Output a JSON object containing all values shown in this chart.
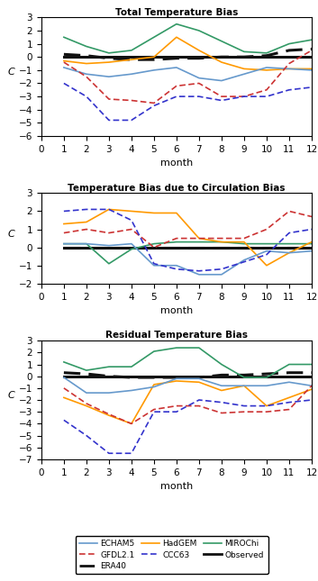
{
  "months": [
    1,
    2,
    3,
    4,
    5,
    6,
    7,
    8,
    9,
    10,
    11,
    12
  ],
  "panel1_title": "Total Temperature Bias",
  "panel2_title": "Temperature Bias due to Circulation Bias",
  "panel3_title": "Residual Temperature Bias",
  "panel1": {
    "ECHAM5": [
      -0.8,
      -1.3,
      -1.5,
      -1.3,
      -1.0,
      -0.8,
      -1.6,
      -1.8,
      -1.3,
      -0.8,
      -0.9,
      -1.0
    ],
    "GFDL2.1": [
      -0.4,
      -1.5,
      -3.2,
      -3.3,
      -3.5,
      -2.2,
      -2.0,
      -3.0,
      -3.0,
      -2.5,
      -0.5,
      0.5
    ],
    "ERA40": [
      0.2,
      0.1,
      -0.1,
      -0.2,
      -0.2,
      -0.1,
      -0.1,
      0.0,
      0.0,
      0.1,
      0.5,
      0.6
    ],
    "HadGEM": [
      -0.3,
      -0.5,
      -0.4,
      -0.2,
      0.0,
      1.5,
      0.5,
      -0.4,
      -0.9,
      -1.0,
      -0.9,
      -0.9
    ],
    "CCC63": [
      -2.0,
      -3.0,
      -4.8,
      -4.8,
      -3.7,
      -3.0,
      -3.0,
      -3.3,
      -3.0,
      -3.0,
      -2.5,
      -2.3
    ],
    "MIROChi": [
      1.5,
      0.8,
      0.3,
      0.5,
      1.5,
      2.5,
      2.0,
      1.2,
      0.4,
      0.3,
      1.0,
      1.3
    ],
    "Observed": [
      0.0,
      0.0,
      0.0,
      0.0,
      0.0,
      0.0,
      0.0,
      0.0,
      0.0,
      0.0,
      0.0,
      0.0
    ]
  },
  "panel2": {
    "ECHAM5": [
      0.2,
      0.2,
      0.1,
      0.2,
      -1.0,
      -1.0,
      -1.5,
      -1.5,
      -0.7,
      -0.2,
      -0.3,
      -0.2
    ],
    "GFDL2.1": [
      0.8,
      1.0,
      0.8,
      1.0,
      0.0,
      0.5,
      0.5,
      0.5,
      0.5,
      1.0,
      2.0,
      1.7
    ],
    "ERA40": [
      0.0,
      0.0,
      0.0,
      0.0,
      0.0,
      0.0,
      0.0,
      0.0,
      0.0,
      0.0,
      0.0,
      0.0
    ],
    "HadGEM": [
      1.3,
      1.4,
      2.1,
      2.0,
      1.9,
      1.9,
      0.5,
      0.3,
      0.3,
      -1.0,
      -0.3,
      0.3
    ],
    "CCC63": [
      2.0,
      2.1,
      2.1,
      1.5,
      -0.9,
      -1.2,
      -1.3,
      -1.2,
      -0.8,
      -0.4,
      0.8,
      1.0
    ],
    "MIROChi": [
      0.2,
      0.2,
      -0.9,
      -0.1,
      0.2,
      0.3,
      0.3,
      0.3,
      0.2,
      0.2,
      0.2,
      0.2
    ],
    "Observed": [
      0.0,
      0.0,
      0.0,
      0.0,
      0.0,
      0.0,
      0.0,
      0.0,
      0.0,
      0.0,
      0.0,
      0.0
    ]
  },
  "panel3": {
    "ECHAM5": [
      -0.1,
      -1.4,
      -1.4,
      -1.2,
      -0.9,
      -0.2,
      -0.2,
      -0.8,
      -0.8,
      -0.8,
      -0.5,
      -0.8
    ],
    "GFDL2.1": [
      -1.0,
      -2.3,
      -3.2,
      -4.0,
      -2.8,
      -2.5,
      -2.5,
      -3.1,
      -3.0,
      -3.0,
      -2.8,
      -0.8
    ],
    "ERA40": [
      0.3,
      0.2,
      0.0,
      -0.1,
      -0.1,
      -0.1,
      -0.1,
      0.1,
      0.1,
      0.2,
      0.3,
      0.3
    ],
    "HadGEM": [
      -1.8,
      -2.5,
      -3.3,
      -4.0,
      -0.7,
      -0.4,
      -0.5,
      -1.2,
      -0.8,
      -2.5,
      -1.8,
      -1.1
    ],
    "CCC63": [
      -3.7,
      -5.0,
      -6.5,
      -6.5,
      -3.0,
      -3.0,
      -2.0,
      -2.2,
      -2.5,
      -2.5,
      -2.2,
      -2.0
    ],
    "MIROChi": [
      1.2,
      0.5,
      0.8,
      0.8,
      2.1,
      2.4,
      2.4,
      1.0,
      -0.1,
      -0.1,
      1.0,
      1.0
    ],
    "Observed": [
      0.0,
      0.0,
      0.0,
      0.0,
      0.0,
      0.0,
      0.0,
      0.0,
      0.0,
      0.0,
      0.0,
      0.0
    ]
  },
  "colors": {
    "ECHAM5": "#6699CC",
    "GFDL2.1": "#CC3333",
    "ERA40": "#111111",
    "HadGEM": "#FF9900",
    "CCC63": "#3333CC",
    "MIROChi": "#339966",
    "Observed": "#111111"
  },
  "panel1_ylim": [
    -6,
    3
  ],
  "panel2_ylim": [
    -2,
    3
  ],
  "panel3_ylim": [
    -7,
    3
  ],
  "ylabel": "C",
  "xlabel": "month",
  "legend_entries": [
    {
      "label": "ECHAM5",
      "color": "#6699CC",
      "linestyle": "solid",
      "linewidth": 1.2,
      "dashes": []
    },
    {
      "label": "GFDL2.1",
      "color": "#CC3333",
      "linestyle": "dashed",
      "linewidth": 1.2,
      "dashes": [
        4,
        2
      ]
    },
    {
      "label": "ERA40",
      "color": "#111111",
      "linestyle": "dashed",
      "linewidth": 2.0,
      "dashes": [
        6,
        3
      ]
    },
    {
      "label": "HadGEM",
      "color": "#FF9900",
      "linestyle": "solid",
      "linewidth": 1.2,
      "dashes": []
    },
    {
      "label": "CCC63",
      "color": "#3333CC",
      "linestyle": "dashed",
      "linewidth": 1.2,
      "dashes": [
        4,
        2
      ]
    },
    {
      "label": "MIROChi",
      "color": "#339966",
      "linestyle": "solid",
      "linewidth": 1.2,
      "dashes": []
    },
    {
      "label": "Observed",
      "color": "#111111",
      "linestyle": "solid",
      "linewidth": 2.0,
      "dashes": []
    }
  ]
}
